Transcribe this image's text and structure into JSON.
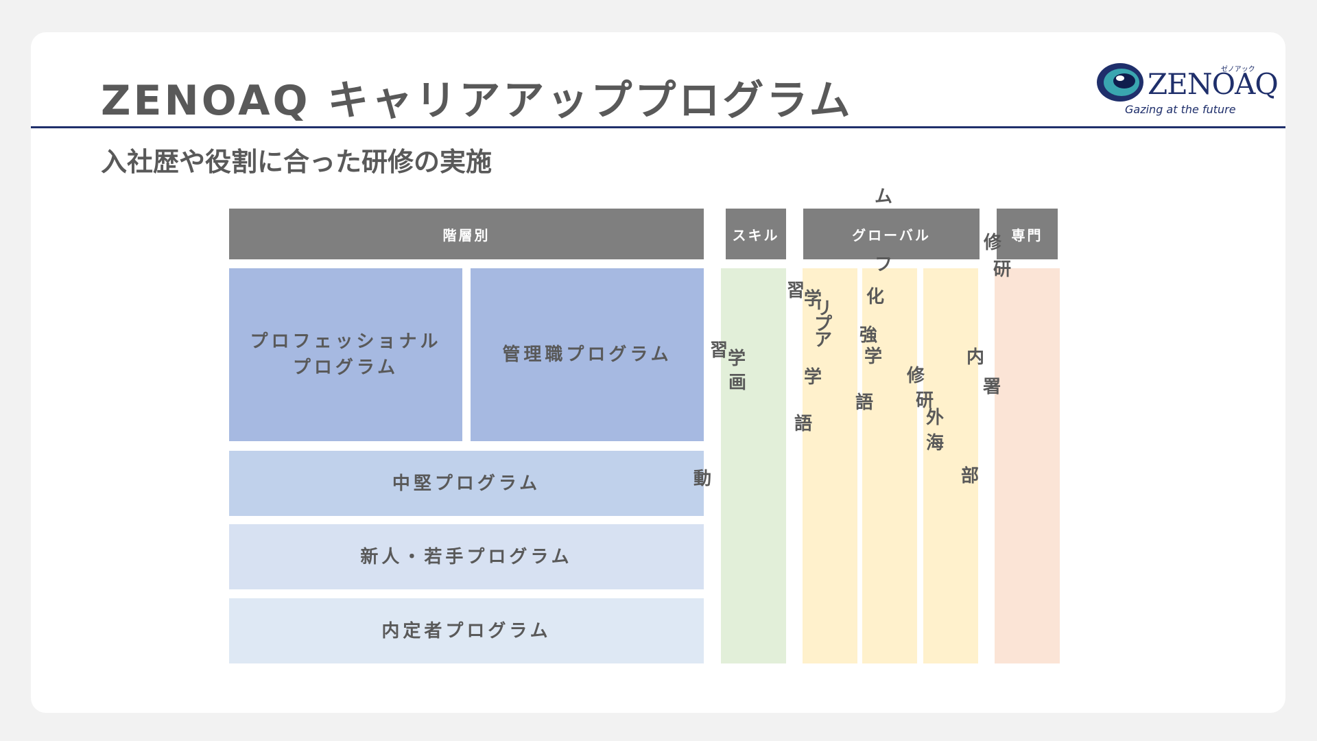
{
  "header": {
    "title": "ZENOAQ キャリアアッププログラム",
    "subtitle": "入社歴や役割に合った研修の実施"
  },
  "logo": {
    "word": "ZENOAQ",
    "kana": "ゼノアック",
    "tagline": "Gazing at the future"
  },
  "categories": {
    "hierarchy": "階層別",
    "skill": "スキル",
    "global": "グローバル",
    "specialist": "専門"
  },
  "programs": {
    "professional": "プロフェッショナルプログラム",
    "management": "管理職プログラム",
    "midcareer": "中堅プログラム",
    "newcomer": "新人・若手プログラム",
    "offer": "内定者プログラム"
  },
  "vertical_fragments": {
    "skill_col": [
      "習",
      "学",
      "画",
      "動"
    ],
    "global_col1": [
      "習",
      "学",
      "リ",
      "プ",
      "ア",
      "学",
      "語"
    ],
    "global_col2": [
      "ム",
      "フ",
      "化",
      "強",
      "学",
      "語"
    ],
    "global_col3": [
      "修",
      "研",
      "外",
      "海",
      "内",
      "部"
    ],
    "specialist_col": [
      "修",
      "研",
      "署"
    ]
  },
  "colors": {
    "header_gray": "#7f7f7f",
    "title_gray": "#595959",
    "navy": "#1f2f6b",
    "blue_dark": "#a6b9e1",
    "blue_mid": "#c0d1eb",
    "blue_light": "#d7e1f2",
    "blue_lightest": "#dee8f4",
    "green": "#e2efd9",
    "yellow": "#fff1cc",
    "peach": "#fbe4d6"
  }
}
